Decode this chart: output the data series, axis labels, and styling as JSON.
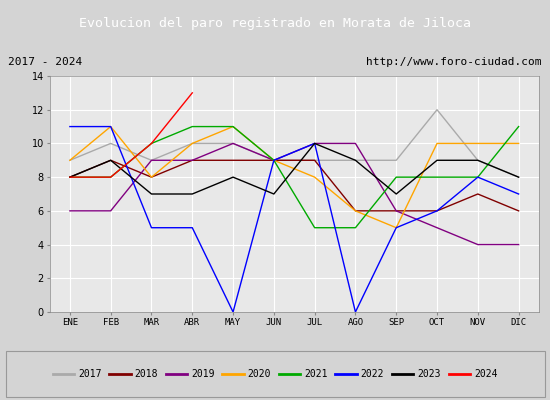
{
  "title": "Evolucion del paro registrado en Morata de Jiloca",
  "subtitle_left": "2017 - 2024",
  "subtitle_right": "http://www.foro-ciudad.com",
  "months": [
    "ENE",
    "FEB",
    "MAR",
    "ABR",
    "MAY",
    "JUN",
    "JUL",
    "AGO",
    "SEP",
    "OCT",
    "NOV",
    "DIC"
  ],
  "ylim": [
    0,
    14
  ],
  "yticks": [
    0,
    2,
    4,
    6,
    8,
    10,
    12,
    14
  ],
  "series": {
    "2017": {
      "color": "#aaaaaa",
      "values": [
        9,
        10,
        9,
        10,
        10,
        9,
        9,
        9,
        9,
        12,
        9,
        8
      ]
    },
    "2018": {
      "color": "#800000",
      "values": [
        8,
        9,
        8,
        9,
        9,
        9,
        9,
        6,
        6,
        6,
        7,
        6
      ]
    },
    "2019": {
      "color": "#800080",
      "values": [
        6,
        6,
        9,
        9,
        10,
        9,
        10,
        10,
        6,
        5,
        4,
        4
      ]
    },
    "2020": {
      "color": "#ffa500",
      "values": [
        9,
        11,
        8,
        10,
        11,
        9,
        8,
        6,
        5,
        10,
        10,
        10
      ]
    },
    "2021": {
      "color": "#00aa00",
      "values": [
        8,
        8,
        10,
        11,
        11,
        9,
        5,
        5,
        8,
        8,
        8,
        11
      ]
    },
    "2022": {
      "color": "#0000ff",
      "values": [
        11,
        11,
        5,
        5,
        0,
        9,
        10,
        0,
        5,
        6,
        8,
        7
      ]
    },
    "2023": {
      "color": "#000000",
      "values": [
        8,
        9,
        7,
        7,
        8,
        7,
        10,
        9,
        7,
        9,
        9,
        8
      ]
    },
    "2024": {
      "color": "#ff0000",
      "values": [
        8,
        8,
        10,
        13,
        null,
        null,
        null,
        null,
        null,
        null,
        null,
        null
      ]
    }
  },
  "background_color": "#d4d4d4",
  "plot_bg_color": "#e8e8e8",
  "title_bg_color": "#4472c4",
  "title_text_color": "#ffffff",
  "subtitle_bg_color": "#ffffff",
  "grid_color": "#ffffff",
  "legend_colors": {
    "2017": "#aaaaaa",
    "2018": "#800000",
    "2019": "#800080",
    "2020": "#ffa500",
    "2021": "#00aa00",
    "2022": "#0000ff",
    "2023": "#000000",
    "2024": "#ff0000"
  }
}
